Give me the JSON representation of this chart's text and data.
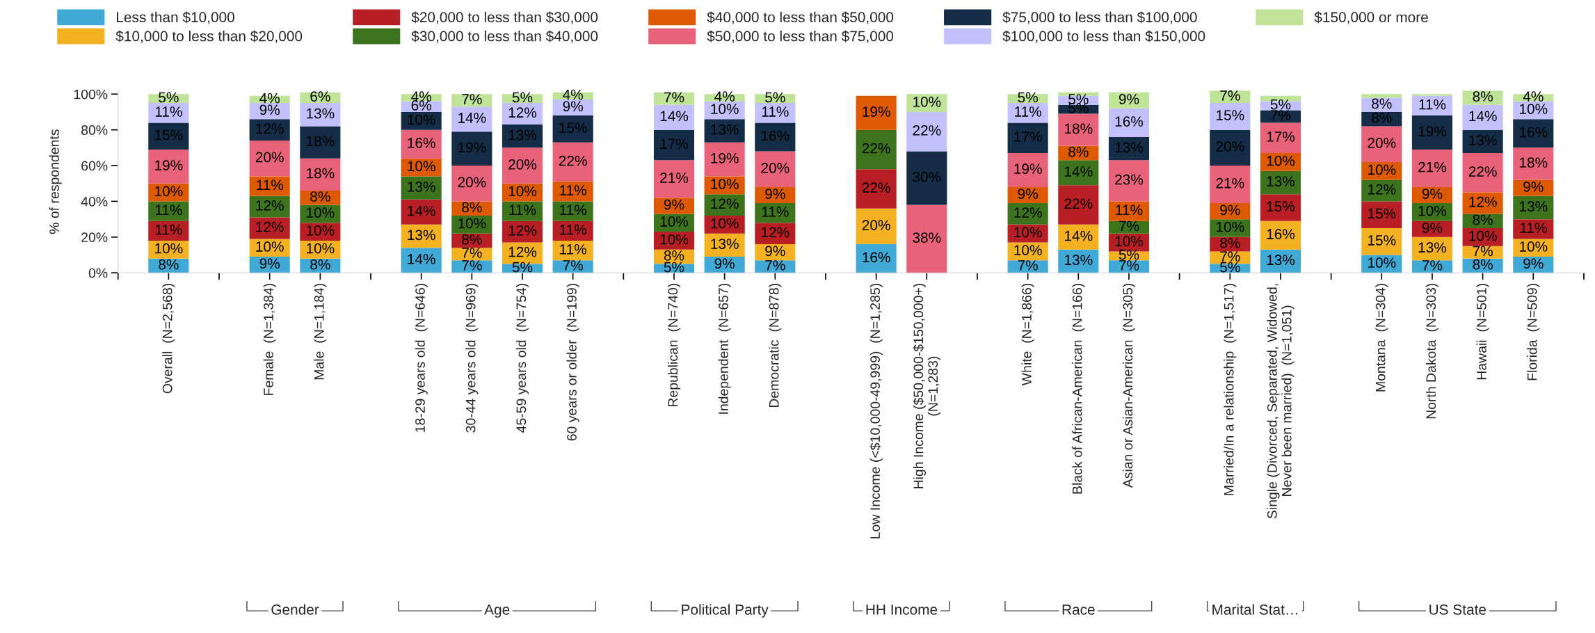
{
  "chart_data": {
    "type": "bar",
    "stacked": true,
    "ylabel": "% of respondents",
    "legend": "top",
    "grid": false,
    "categories": [
      "Overall  (N=2,568)",
      null,
      "Female  (N=1,384)",
      "Male  (N=1,184)",
      null,
      "18-29 years old  (N=646)",
      "30-44 years old  (N=969)",
      "45-59 years old  (N=754)",
      "60 years or older  (N=199)",
      null,
      "Republican  (N=740)",
      "Independent  (N=657)",
      "Democratic  (N=878)",
      null,
      "Low Income (<$10,000-49,999)  (N=1,285)",
      "High Income ($50,000-$150,000+)\n(N=1,283)",
      null,
      "White  (N=1,866)",
      "Black of African-American  (N=166)",
      "Asian or Asian-American  (N=305)",
      null,
      "Married/In a relationship  (N=1,517)",
      "Single (Divorced, Separated, Widowed,\nNever been married)  (N=1,051)",
      null,
      "Montana  (N=304)",
      "North Dakota  (N=303)",
      "Hawaii  (N=501)",
      "Florida  (N=509)"
    ],
    "ylim": [
      0,
      102
    ],
    "yticks": [
      {
        "value": 0,
        "label": "0%"
      },
      {
        "value": 20,
        "label": "20%"
      },
      {
        "value": 40,
        "label": "40%"
      },
      {
        "value": 60,
        "label": "60%"
      },
      {
        "value": 80,
        "label": "80%"
      },
      {
        "value": 100,
        "label": "100%"
      }
    ],
    "annotations": [
      "Gender",
      "Age",
      "Political Party",
      "HH Income",
      "Race",
      "Marital Stat…",
      "US State"
    ],
    "series": [
      {
        "name": "Less than $10,000",
        "color": "#41a9d6",
        "values": [
          8,
          null,
          9,
          8,
          null,
          14,
          7,
          5,
          7,
          null,
          5,
          9,
          7,
          null,
          16,
          null,
          null,
          7,
          13,
          7,
          null,
          5,
          13,
          null,
          10,
          7,
          8,
          9
        ],
        "value_labels": [
          "8%",
          null,
          "9%",
          "8%",
          null,
          "14%",
          "7%",
          "5%",
          "7%",
          null,
          "5%",
          "9%",
          "7%",
          null,
          "16%",
          null,
          null,
          "7%",
          "13%",
          "7%",
          null,
          "5%",
          "13%",
          null,
          "10%",
          "7%",
          "8%",
          "9%"
        ]
      },
      {
        "name": "$10,000 to less than $20,000",
        "color": "#f4b223",
        "values": [
          10,
          null,
          10,
          10,
          null,
          13,
          7,
          12,
          11,
          null,
          8,
          13,
          9,
          null,
          20,
          null,
          null,
          10,
          14,
          5,
          null,
          7,
          16,
          null,
          15,
          13,
          7,
          10
        ],
        "value_labels": [
          "10%",
          null,
          "10%",
          "10%",
          null,
          "13%",
          "7%",
          "12%",
          "11%",
          null,
          "8%",
          "13%",
          "9%",
          null,
          "20%",
          null,
          null,
          "10%",
          "14%",
          "5%",
          null,
          "7%",
          "16%",
          null,
          "15%",
          "13%",
          "7%",
          "10%"
        ]
      },
      {
        "name": "$20,000 to less than $30,000",
        "color": "#b81f25",
        "values": [
          11,
          null,
          12,
          10,
          null,
          14,
          8,
          12,
          11,
          null,
          10,
          10,
          12,
          null,
          22,
          null,
          null,
          10,
          22,
          10,
          null,
          8,
          15,
          null,
          15,
          9,
          10,
          11
        ],
        "value_labels": [
          "11%",
          null,
          "12%",
          "10%",
          null,
          "14%",
          "8%",
          "12%",
          "11%",
          null,
          "10%",
          "10%",
          "12%",
          null,
          "22%",
          null,
          null,
          "10%",
          "22%",
          "10%",
          null,
          "8%",
          "15%",
          null,
          "15%",
          "9%",
          "10%",
          "11%"
        ]
      },
      {
        "name": "$30,000 to less than $40,000",
        "color": "#3c731c",
        "values": [
          11,
          null,
          12,
          10,
          null,
          13,
          10,
          11,
          11,
          null,
          10,
          12,
          11,
          null,
          22,
          null,
          null,
          12,
          14,
          7,
          null,
          10,
          13,
          null,
          12,
          10,
          8,
          13
        ],
        "value_labels": [
          "11%",
          null,
          "12%",
          "10%",
          null,
          "13%",
          "10%",
          "11%",
          "11%",
          null,
          "10%",
          "12%",
          "11%",
          null,
          "22%",
          null,
          null,
          "12%",
          "14%",
          "7%",
          null,
          "10%",
          "13%",
          null,
          "12%",
          "10%",
          "8%",
          "13%"
        ]
      },
      {
        "name": "$40,000 to less than $50,000",
        "color": "#de5a02",
        "values": [
          10,
          null,
          11,
          8,
          null,
          10,
          8,
          10,
          11,
          null,
          9,
          10,
          9,
          null,
          19,
          null,
          null,
          9,
          8,
          11,
          null,
          9,
          10,
          null,
          10,
          9,
          12,
          9
        ],
        "value_labels": [
          "10%",
          null,
          "11%",
          "8%",
          null,
          "10%",
          "8%",
          "10%",
          "11%",
          null,
          "9%",
          "10%",
          "9%",
          null,
          "19%",
          null,
          null,
          "9%",
          "8%",
          "11%",
          null,
          "9%",
          "10%",
          null,
          "10%",
          "9%",
          "12%",
          "9%"
        ]
      },
      {
        "name": "$50,000 to less than $75,000",
        "color": "#e8637a",
        "values": [
          19,
          null,
          20,
          18,
          null,
          16,
          20,
          20,
          22,
          null,
          21,
          19,
          20,
          null,
          null,
          38,
          null,
          19,
          18,
          23,
          null,
          21,
          17,
          null,
          20,
          21,
          22,
          18
        ],
        "value_labels": [
          "19%",
          null,
          "20%",
          "18%",
          null,
          "16%",
          "20%",
          "20%",
          "22%",
          null,
          "21%",
          "19%",
          "20%",
          null,
          null,
          "38%",
          null,
          "19%",
          "18%",
          "23%",
          null,
          "21%",
          "17%",
          null,
          "20%",
          "21%",
          "22%",
          "18%"
        ]
      },
      {
        "name": "$75,000 to less than $100,000",
        "color": "#152c46",
        "values": [
          15,
          null,
          12,
          18,
          null,
          10,
          19,
          13,
          15,
          null,
          17,
          13,
          16,
          null,
          null,
          30,
          null,
          17,
          5,
          13,
          null,
          20,
          7,
          null,
          8,
          19,
          13,
          16
        ],
        "value_labels": [
          "15%",
          null,
          "12%",
          "18%",
          null,
          "10%",
          "19%",
          "13%",
          "15%",
          null,
          "17%",
          "13%",
          "16%",
          null,
          null,
          "30%",
          null,
          "17%",
          "5%",
          "13%",
          null,
          "20%",
          "7%",
          null,
          "8%",
          "19%",
          "13%",
          "16%"
        ]
      },
      {
        "name": "$100,000 to less than $150,000",
        "color": "#c2c1fd",
        "values": [
          11,
          null,
          9,
          13,
          null,
          6,
          14,
          12,
          9,
          null,
          14,
          10,
          11,
          null,
          null,
          22,
          null,
          11,
          5,
          16,
          null,
          15,
          5,
          null,
          8,
          11,
          14,
          10
        ],
        "value_labels": [
          "11%",
          null,
          "9%",
          "13%",
          null,
          "6%",
          "14%",
          "12%",
          "9%",
          null,
          "14%",
          "10%",
          "11%",
          null,
          null,
          "22%",
          null,
          "11%",
          "5%",
          "16%",
          null,
          "15%",
          "5%",
          null,
          "8%",
          "11%",
          "14%",
          "10%"
        ]
      },
      {
        "name": "$150,000 or more",
        "color": "#bfe397",
        "values": [
          5,
          null,
          4,
          6,
          null,
          4,
          7,
          5,
          4,
          null,
          7,
          4,
          5,
          null,
          null,
          10,
          null,
          5,
          2,
          9,
          null,
          7,
          3,
          null,
          2,
          1,
          8,
          4
        ],
        "value_labels": [
          "5%",
          null,
          "4%",
          "6%",
          null,
          "4%",
          "7%",
          "5%",
          "4%",
          null,
          "7%",
          "4%",
          "5%",
          null,
          null,
          "10%",
          null,
          "5%",
          null,
          "9%",
          null,
          "7%",
          null,
          null,
          null,
          null,
          "8%",
          "4%"
        ]
      }
    ]
  }
}
